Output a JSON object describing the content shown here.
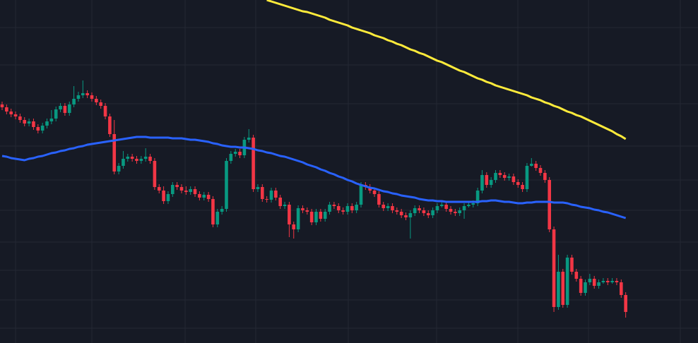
{
  "chart_data": {
    "type": "candlestick",
    "background": "#161a25",
    "grid": true,
    "grid_color": "#242834",
    "ylim": [
      0,
      486
    ],
    "up_color": "#089981",
    "down_color": "#f23645",
    "ohlc": [
      [
        338,
        342,
        330,
        334
      ],
      [
        334,
        338,
        324,
        328
      ],
      [
        328,
        332,
        320,
        324
      ],
      [
        324,
        328,
        317,
        321
      ],
      [
        321,
        325,
        312,
        316
      ],
      [
        316,
        320,
        307,
        311
      ],
      [
        311,
        318,
        307,
        314
      ],
      [
        314,
        318,
        302,
        306
      ],
      [
        306,
        310,
        297,
        301
      ],
      [
        301,
        312,
        297,
        308
      ],
      [
        308,
        318,
        304,
        314
      ],
      [
        314,
        330,
        310,
        318
      ],
      [
        318,
        335,
        314,
        331
      ],
      [
        331,
        340,
        327,
        336
      ],
      [
        336,
        340,
        322,
        326
      ],
      [
        326,
        342,
        322,
        338
      ],
      [
        338,
        364,
        334,
        346
      ],
      [
        346,
        356,
        342,
        351
      ],
      [
        351,
        372,
        347,
        354
      ],
      [
        354,
        358,
        347,
        351
      ],
      [
        351,
        355,
        342,
        346
      ],
      [
        346,
        350,
        337,
        341
      ],
      [
        341,
        345,
        332,
        336
      ],
      [
        336,
        340,
        317,
        321
      ],
      [
        321,
        325,
        292,
        296
      ],
      [
        296,
        316,
        239,
        243
      ],
      [
        243,
        255,
        239,
        251
      ],
      [
        251,
        272,
        247,
        261
      ],
      [
        261,
        268,
        257,
        264
      ],
      [
        264,
        268,
        257,
        261
      ],
      [
        261,
        265,
        254,
        258
      ],
      [
        258,
        265,
        254,
        261
      ],
      [
        261,
        276,
        257,
        264
      ],
      [
        264,
        268,
        254,
        258
      ],
      [
        258,
        262,
        217,
        221
      ],
      [
        221,
        225,
        212,
        216
      ],
      [
        216,
        222,
        197,
        201
      ],
      [
        201,
        215,
        197,
        211
      ],
      [
        211,
        228,
        207,
        224
      ],
      [
        224,
        228,
        217,
        221
      ],
      [
        221,
        225,
        212,
        216
      ],
      [
        216,
        222,
        210,
        214
      ],
      [
        214,
        222,
        210,
        218
      ],
      [
        218,
        222,
        207,
        211
      ],
      [
        211,
        215,
        202,
        206
      ],
      [
        206,
        214,
        202,
        210
      ],
      [
        210,
        214,
        200,
        204
      ],
      [
        204,
        208,
        164,
        168
      ],
      [
        168,
        190,
        164,
        186
      ],
      [
        186,
        194,
        182,
        190
      ],
      [
        190,
        262,
        186,
        258
      ],
      [
        258,
        272,
        254,
        268
      ],
      [
        268,
        275,
        264,
        271
      ],
      [
        271,
        275,
        262,
        266
      ],
      [
        266,
        292,
        262,
        288
      ],
      [
        288,
        303,
        284,
        291
      ],
      [
        291,
        295,
        214,
        218
      ],
      [
        218,
        225,
        214,
        221
      ],
      [
        221,
        225,
        200,
        204
      ],
      [
        204,
        208,
        199,
        203
      ],
      [
        203,
        220,
        199,
        216
      ],
      [
        216,
        220,
        202,
        206
      ],
      [
        206,
        210,
        190,
        194
      ],
      [
        194,
        200,
        190,
        196
      ],
      [
        196,
        200,
        150,
        168
      ],
      [
        168,
        172,
        148,
        161
      ],
      [
        161,
        195,
        157,
        191
      ],
      [
        191,
        195,
        184,
        188
      ],
      [
        188,
        192,
        182,
        186
      ],
      [
        186,
        190,
        167,
        171
      ],
      [
        171,
        190,
        167,
        186
      ],
      [
        186,
        190,
        172,
        176
      ],
      [
        176,
        190,
        172,
        186
      ],
      [
        186,
        200,
        182,
        196
      ],
      [
        196,
        200,
        190,
        194
      ],
      [
        194,
        198,
        184,
        188
      ],
      [
        188,
        192,
        182,
        186
      ],
      [
        186,
        198,
        182,
        194
      ],
      [
        194,
        198,
        184,
        188
      ],
      [
        188,
        200,
        184,
        196
      ],
      [
        196,
        228,
        192,
        224
      ],
      [
        224,
        228,
        217,
        221
      ],
      [
        221,
        225,
        212,
        216
      ],
      [
        216,
        220,
        207,
        211
      ],
      [
        211,
        215,
        192,
        196
      ],
      [
        196,
        200,
        187,
        191
      ],
      [
        191,
        198,
        187,
        194
      ],
      [
        194,
        198,
        184,
        188
      ],
      [
        188,
        192,
        182,
        186
      ],
      [
        186,
        190,
        177,
        181
      ],
      [
        181,
        185,
        174,
        178
      ],
      [
        178,
        188,
        148,
        184
      ],
      [
        184,
        195,
        180,
        191
      ],
      [
        191,
        195,
        184,
        188
      ],
      [
        188,
        192,
        180,
        184
      ],
      [
        184,
        188,
        177,
        181
      ],
      [
        181,
        192,
        177,
        188
      ],
      [
        188,
        198,
        184,
        194
      ],
      [
        194,
        200,
        192,
        196
      ],
      [
        196,
        200,
        186,
        190
      ],
      [
        190,
        194,
        182,
        186
      ],
      [
        186,
        190,
        180,
        184
      ],
      [
        184,
        192,
        180,
        188
      ],
      [
        188,
        198,
        176,
        194
      ],
      [
        194,
        200,
        192,
        196
      ],
      [
        196,
        202,
        192,
        198
      ],
      [
        198,
        220,
        194,
        216
      ],
      [
        216,
        245,
        212,
        238
      ],
      [
        238,
        242,
        220,
        224
      ],
      [
        224,
        235,
        220,
        231
      ],
      [
        231,
        245,
        227,
        241
      ],
      [
        241,
        245,
        234,
        238
      ],
      [
        238,
        242,
        230,
        234
      ],
      [
        234,
        240,
        230,
        236
      ],
      [
        236,
        240,
        224,
        228
      ],
      [
        228,
        232,
        220,
        224
      ],
      [
        224,
        228,
        214,
        218
      ],
      [
        218,
        255,
        214,
        251
      ],
      [
        251,
        262,
        250,
        254
      ],
      [
        254,
        258,
        244,
        248
      ],
      [
        248,
        252,
        237,
        241
      ],
      [
        241,
        245,
        227,
        231
      ],
      [
        231,
        235,
        157,
        161
      ],
      [
        161,
        165,
        44,
        51
      ],
      [
        51,
        125,
        47,
        101
      ],
      [
        101,
        105,
        50,
        54
      ],
      [
        54,
        125,
        50,
        121
      ],
      [
        121,
        125,
        97,
        101
      ],
      [
        101,
        105,
        87,
        91
      ],
      [
        91,
        95,
        67,
        71
      ],
      [
        71,
        90,
        67,
        86
      ],
      [
        86,
        98,
        82,
        91
      ],
      [
        91,
        95,
        77,
        81
      ],
      [
        81,
        90,
        77,
        86
      ],
      [
        86,
        92,
        84,
        88
      ],
      [
        88,
        92,
        82,
        86
      ],
      [
        86,
        92,
        84,
        88
      ],
      [
        88,
        92,
        82,
        86
      ],
      [
        86,
        90,
        64,
        68
      ],
      [
        68,
        72,
        36,
        44
      ]
    ],
    "lines": [
      {
        "color": "#2962ff",
        "values": [
          265,
          264,
          262,
          261,
          260,
          259,
          261,
          262,
          264,
          265,
          267,
          269,
          270,
          272,
          273,
          275,
          276,
          278,
          279,
          281,
          282,
          283,
          284,
          285,
          286,
          287,
          288,
          289,
          290,
          291,
          292,
          292,
          292,
          291,
          291,
          291,
          291,
          291,
          290,
          290,
          290,
          289,
          288,
          288,
          287,
          286,
          285,
          283,
          282,
          280,
          279,
          278,
          278,
          277,
          277,
          276,
          275,
          273,
          272,
          270,
          269,
          267,
          265,
          264,
          262,
          260,
          258,
          256,
          253,
          251,
          249,
          246,
          244,
          241,
          239,
          236,
          234,
          231,
          229,
          226,
          224,
          222,
          220,
          219,
          217,
          215,
          214,
          212,
          211,
          209,
          208,
          207,
          206,
          204,
          203,
          202,
          202,
          201,
          201,
          200,
          200,
          200,
          200,
          200,
          200,
          200,
          200,
          201,
          201,
          202,
          202,
          201,
          200,
          200,
          199,
          198,
          198,
          199,
          199,
          200,
          200,
          200,
          200,
          199,
          199,
          199,
          198,
          196,
          195,
          193,
          192,
          191,
          189,
          188,
          186,
          185,
          183,
          181,
          179,
          177
        ]
      },
      {
        "color": "#ffeb3b",
        "values": [
          null,
          null,
          null,
          null,
          null,
          null,
          null,
          null,
          null,
          null,
          null,
          null,
          null,
          null,
          null,
          null,
          null,
          null,
          null,
          null,
          null,
          null,
          null,
          null,
          null,
          null,
          null,
          null,
          null,
          null,
          null,
          null,
          null,
          null,
          null,
          null,
          null,
          null,
          null,
          null,
          null,
          null,
          null,
          null,
          null,
          null,
          null,
          null,
          null,
          null,
          null,
          null,
          null,
          null,
          null,
          null,
          null,
          null,
          null,
          486,
          484,
          482,
          480,
          478,
          476,
          474,
          472,
          470,
          469,
          467,
          465,
          463,
          461,
          458,
          456,
          454,
          452,
          450,
          447,
          445,
          443,
          441,
          439,
          436,
          434,
          432,
          429,
          427,
          424,
          422,
          419,
          416,
          414,
          411,
          409,
          406,
          403,
          400,
          398,
          395,
          392,
          389,
          386,
          384,
          381,
          378,
          375,
          373,
          370,
          368,
          365,
          363,
          361,
          359,
          357,
          355,
          353,
          351,
          348,
          346,
          344,
          341,
          339,
          336,
          334,
          331,
          328,
          326,
          323,
          321,
          318,
          315,
          312,
          309,
          306,
          303,
          300,
          296,
          293,
          289
        ]
      }
    ]
  }
}
